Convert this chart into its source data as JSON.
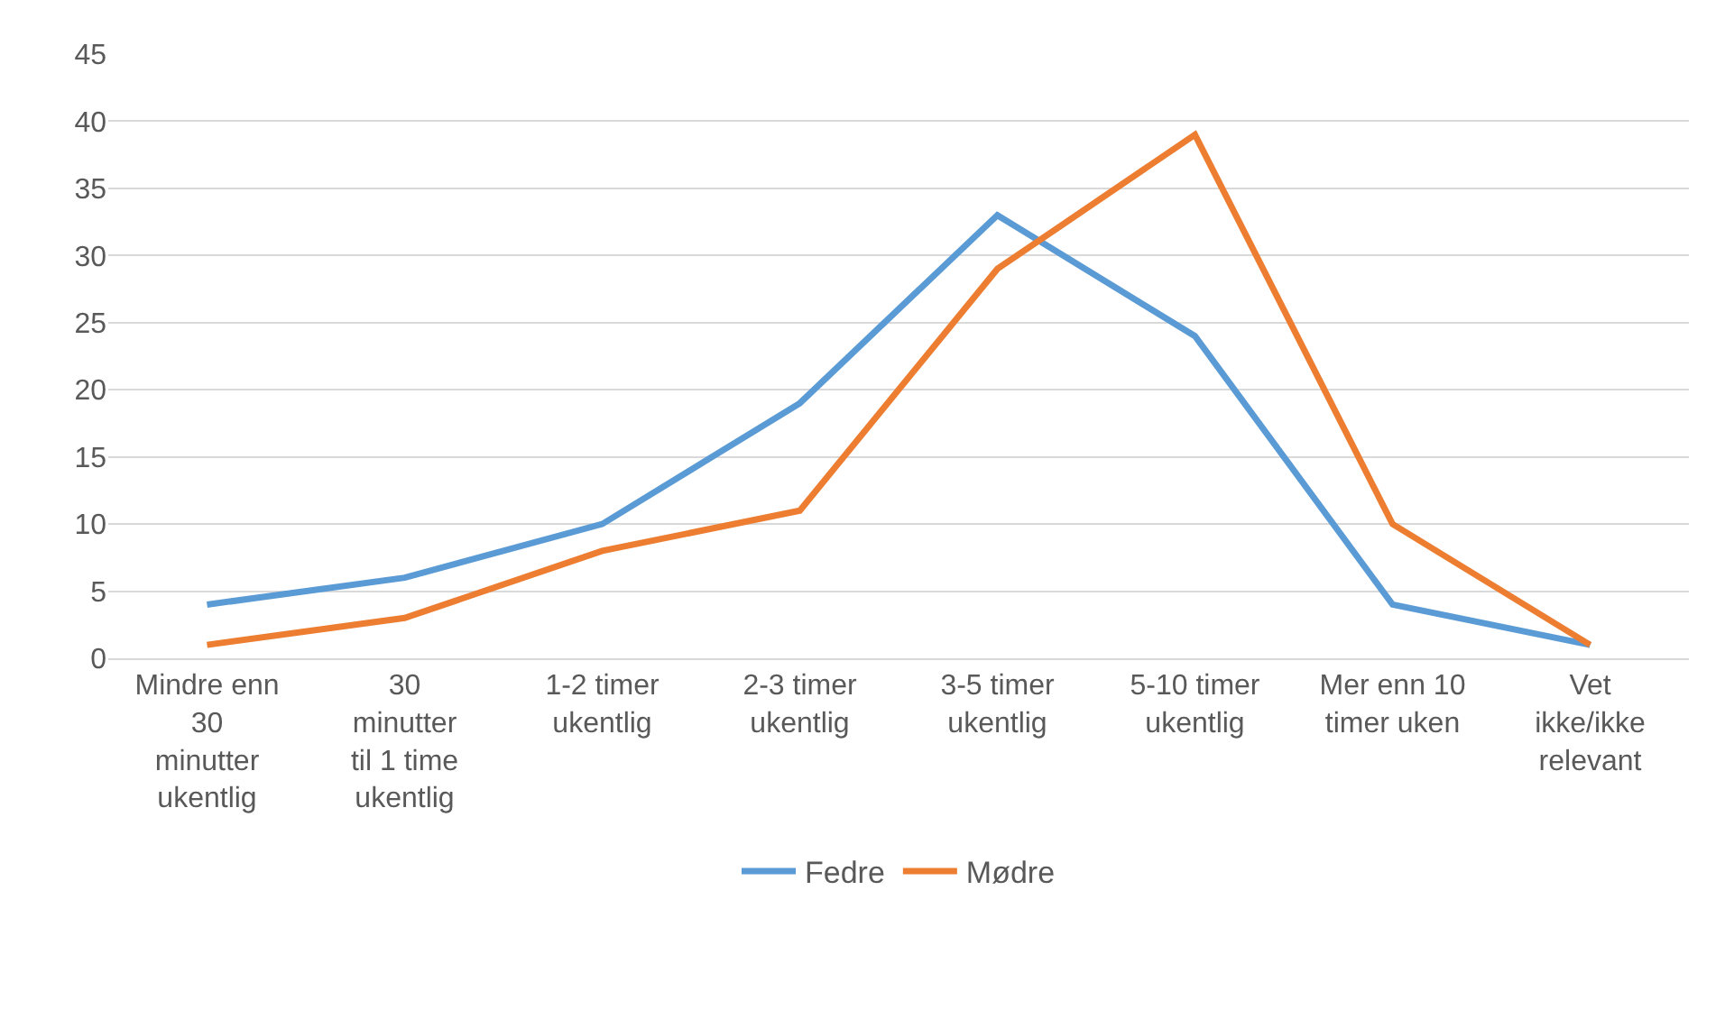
{
  "chart_data": {
    "type": "line",
    "categories": [
      "Mindre enn 30 minutter ukentlig",
      "30 minutter til 1 time ukentlig",
      "1-2 timer ukentlig",
      "2-3 timer ukentlig",
      "3-5 timer ukentlig",
      "5-10 timer ukentlig",
      "Mer enn 10 timer uken",
      "Vet ikke/ikke relevant"
    ],
    "series": [
      {
        "name": "Fedre",
        "color": "#5b9bd5",
        "values": [
          4,
          6,
          10,
          19,
          33,
          24,
          4,
          1
        ]
      },
      {
        "name": "Mødre",
        "color": "#ed7d31",
        "values": [
          1,
          3,
          8,
          11,
          29,
          39,
          10,
          1
        ]
      }
    ],
    "ylim": [
      0,
      45
    ],
    "yticks": [
      0,
      5,
      10,
      15,
      20,
      25,
      30,
      35,
      40,
      45
    ],
    "grid": "y",
    "legend": "bottom",
    "marker": "none",
    "line_style": "solid"
  }
}
